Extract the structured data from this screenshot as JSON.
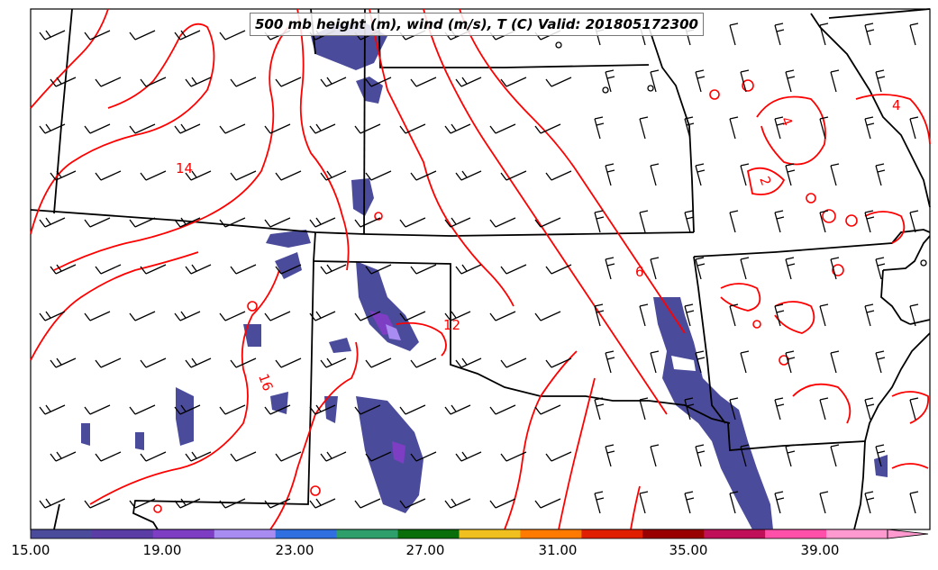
{
  "title": "500 mb height (m), wind (m/s), T (C) Valid: 201805172300",
  "colorbar": {
    "tick_labels": [
      "15.00",
      "19.00",
      "23.00",
      "27.00",
      "31.00",
      "35.00",
      "39.00"
    ],
    "colors": [
      "#4b4b9b",
      "#5a3ea6",
      "#7d3ec4",
      "#a98cf2",
      "#2f6fe0",
      "#2e9e6a",
      "#0a6e0a",
      "#f0c020",
      "#ff7a00",
      "#e01e00",
      "#990000",
      "#c0105a",
      "#ff4fa8",
      "#ff9ad0"
    ],
    "extend": "max"
  },
  "isotherm_labels": [
    "14",
    "16",
    "12",
    "6",
    "4",
    "2",
    "4"
  ],
  "colors": {
    "isotherm": "#ff0000",
    "borders": "#000000",
    "shading": "#4b4b9b"
  }
}
